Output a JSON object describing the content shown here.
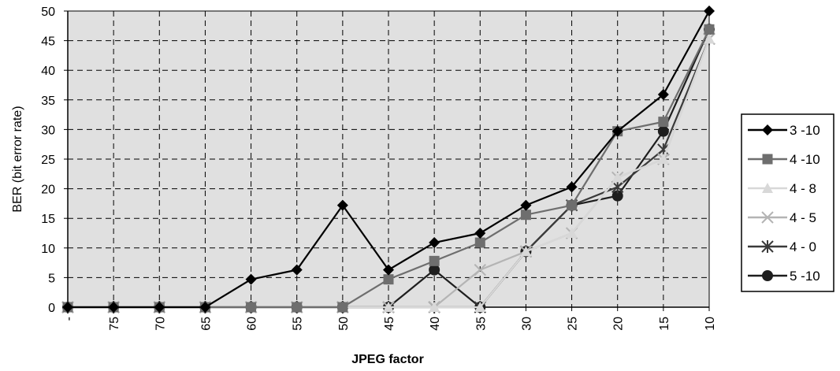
{
  "chart_data": {
    "type": "line",
    "title": "",
    "xlabel": "JPEG factor",
    "ylabel": "BER (bit error rate)",
    "categories": [
      "-",
      "75",
      "70",
      "65",
      "60",
      "55",
      "50",
      "45",
      "40",
      "35",
      "30",
      "25",
      "20",
      "15",
      "10"
    ],
    "yticks": [
      "0",
      "5",
      "10",
      "15",
      "20",
      "25",
      "30",
      "35",
      "40",
      "45",
      "50"
    ],
    "ylim": [
      0,
      50
    ],
    "grid": true,
    "legend_position": "right",
    "plot_background": "#e0e0e0",
    "series": [
      {
        "name": "3 -10",
        "marker": "diamond",
        "color": "#000000",
        "values": [
          0,
          0,
          0,
          0,
          4.7,
          6.3,
          17.2,
          6.3,
          10.9,
          12.5,
          17.2,
          20.3,
          29.7,
          35.9,
          50
        ]
      },
      {
        "name": "4 -10",
        "marker": "square",
        "color": "#6e6e6e",
        "values": [
          0,
          0,
          0,
          0,
          0,
          0,
          0,
          4.7,
          7.8,
          10.9,
          15.6,
          17.2,
          29.7,
          31.3,
          46.9
        ]
      },
      {
        "name": "4 - 8",
        "marker": "triangle",
        "color": "#d8d8d8",
        "values": [
          0,
          0,
          0,
          0,
          0,
          0,
          0,
          0,
          0,
          0,
          9.4,
          12.5,
          21.9,
          25,
          45.3
        ]
      },
      {
        "name": "4 - 5",
        "marker": "x",
        "color": "#b4b4b4",
        "values": [
          0,
          0,
          0,
          0,
          0,
          0,
          0,
          0,
          0,
          6.3,
          9.4,
          12.5,
          21.9,
          25,
          45.3
        ]
      },
      {
        "name": "4 - 0",
        "marker": "star",
        "color": "#3a3a3a",
        "values": [
          0,
          0,
          0,
          0,
          0,
          0,
          0,
          0,
          0,
          0,
          9.4,
          17.2,
          20.3,
          26.6,
          45.3
        ]
      },
      {
        "name": "5 -10",
        "marker": "circle",
        "color": "#1e1e1e",
        "values": [
          0,
          0,
          0,
          0,
          0,
          0,
          0,
          0,
          6.3,
          0,
          9.4,
          17.2,
          18.8,
          29.7,
          46.9
        ]
      }
    ]
  }
}
